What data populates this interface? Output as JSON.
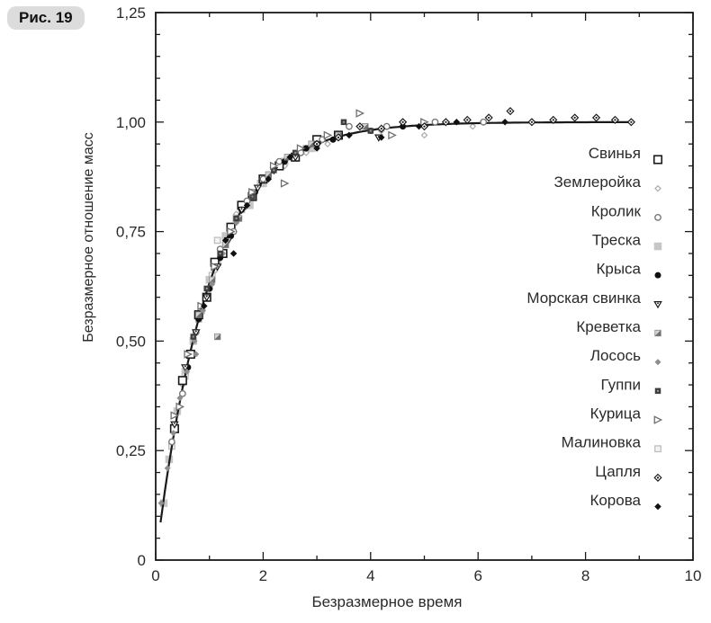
{
  "figure_label": "Рис. 19",
  "colors": {
    "ink": "#1a1a1a",
    "badge_bg": "#dcdcdc",
    "gray_light": "#c6c6c6",
    "gray_mid": "#8d8d8d",
    "gray_dark": "#3e3e3e"
  },
  "chart_data": {
    "type": "scatter",
    "title": "",
    "xlabel": "Безразмерное время",
    "ylabel": "Безразмерное отношение масс",
    "xlim": [
      0,
      10
    ],
    "ylim": [
      0,
      1.25
    ],
    "grid": false,
    "legend_position": "right-inside",
    "x_major_ticks": [
      {
        "v": 0,
        "label": "0"
      },
      {
        "v": 2,
        "label": "2"
      },
      {
        "v": 4,
        "label": "4"
      },
      {
        "v": 6,
        "label": "6"
      },
      {
        "v": 8,
        "label": "8"
      },
      {
        "v": 10,
        "label": "10"
      }
    ],
    "x_minor_ticks": [
      1,
      3,
      5,
      7,
      9
    ],
    "y_major_ticks": [
      {
        "v": 0,
        "label": "0"
      },
      {
        "v": 0.25,
        "label": "0,25"
      },
      {
        "v": 0.5,
        "label": "0,50"
      },
      {
        "v": 0.75,
        "label": "0,75"
      },
      {
        "v": 1.0,
        "label": "1,00"
      },
      {
        "v": 1.25,
        "label": "1,25"
      }
    ],
    "y_minor_step": 0.05,
    "fit_curve": {
      "type": "saturating-exponential",
      "description": "y = 1 - exp(-t)",
      "x_start": 0.09,
      "x_end": 8.85
    },
    "series": [
      {
        "id": "pig",
        "name": "Свинья",
        "marker": "square-open",
        "points": [
          [
            0.35,
            0.3
          ],
          [
            0.5,
            0.41
          ],
          [
            0.65,
            0.47
          ],
          [
            0.8,
            0.56
          ],
          [
            0.95,
            0.6
          ],
          [
            1.1,
            0.68
          ],
          [
            1.25,
            0.7
          ],
          [
            1.4,
            0.76
          ],
          [
            1.6,
            0.81
          ],
          [
            1.8,
            0.83
          ],
          [
            2.0,
            0.87
          ],
          [
            2.3,
            0.9
          ],
          [
            2.6,
            0.92
          ],
          [
            3.0,
            0.96
          ],
          [
            3.4,
            0.97
          ]
        ]
      },
      {
        "id": "shrew",
        "name": "Землеройка",
        "marker": "diamond-open-light",
        "points": [
          [
            0.5,
            0.4
          ],
          [
            0.7,
            0.5
          ],
          [
            0.9,
            0.58
          ],
          [
            1.1,
            0.66
          ],
          [
            1.3,
            0.73
          ],
          [
            1.5,
            0.79
          ],
          [
            1.8,
            0.83
          ],
          [
            2.1,
            0.88
          ],
          [
            2.4,
            0.9
          ],
          [
            2.8,
            0.93
          ],
          [
            3.2,
            0.95
          ],
          [
            3.6,
            0.97
          ],
          [
            4.2,
            0.98
          ],
          [
            5.0,
            0.97
          ],
          [
            5.9,
            0.99
          ]
        ]
      },
      {
        "id": "rabbit",
        "name": "Кролик",
        "marker": "circle-open",
        "points": [
          [
            0.3,
            0.27
          ],
          [
            0.5,
            0.38
          ],
          [
            0.75,
            0.52
          ],
          [
            1.0,
            0.62
          ],
          [
            1.2,
            0.71
          ],
          [
            1.45,
            0.75
          ],
          [
            1.7,
            0.82
          ],
          [
            2.0,
            0.87
          ],
          [
            2.3,
            0.91
          ],
          [
            2.7,
            0.93
          ],
          [
            3.1,
            0.96
          ],
          [
            3.6,
            0.99
          ],
          [
            4.3,
            0.99
          ],
          [
            5.2,
            1.0
          ],
          [
            6.1,
            1.0
          ]
        ]
      },
      {
        "id": "cod",
        "name": "Треска",
        "marker": "square-filled-light",
        "points": [
          [
            0.15,
            0.13
          ],
          [
            0.25,
            0.23
          ],
          [
            0.4,
            0.34
          ],
          [
            0.55,
            0.43
          ],
          [
            0.7,
            0.5
          ],
          [
            0.85,
            0.57
          ],
          [
            1.0,
            0.64
          ],
          [
            1.15,
            0.68
          ],
          [
            1.3,
            0.74
          ],
          [
            1.5,
            0.78
          ],
          [
            1.75,
            0.81
          ],
          [
            2.0,
            0.86
          ],
          [
            2.4,
            0.91
          ],
          [
            2.9,
            0.94
          ]
        ]
      },
      {
        "id": "rat",
        "name": "Крыса",
        "marker": "circle-filled",
        "points": [
          [
            0.6,
            0.44
          ],
          [
            0.8,
            0.55
          ],
          [
            1.0,
            0.62
          ],
          [
            1.2,
            0.69
          ],
          [
            1.4,
            0.74
          ],
          [
            1.6,
            0.8
          ],
          [
            1.85,
            0.84
          ],
          [
            2.1,
            0.88
          ],
          [
            2.4,
            0.91
          ],
          [
            2.8,
            0.94
          ],
          [
            3.3,
            0.96
          ],
          [
            4.0,
            0.98
          ],
          [
            4.6,
            0.99
          ]
        ]
      },
      {
        "id": "guinea-pig",
        "name": "Морская свинка",
        "marker": "triangle-down-open",
        "points": [
          [
            0.35,
            0.31
          ],
          [
            0.55,
            0.44
          ],
          [
            0.75,
            0.52
          ],
          [
            0.95,
            0.6
          ],
          [
            1.15,
            0.67
          ],
          [
            1.35,
            0.73
          ],
          [
            1.6,
            0.8
          ],
          [
            1.9,
            0.85
          ],
          [
            2.2,
            0.89
          ],
          [
            2.6,
            0.92
          ],
          [
            3.0,
            0.95
          ],
          [
            4.15,
            0.965
          ]
        ]
      },
      {
        "id": "shrimp",
        "name": "Креветка",
        "marker": "square-half",
        "points": [
          [
            0.8,
            0.56
          ],
          [
            1.05,
            0.64
          ],
          [
            1.15,
            0.51
          ],
          [
            1.3,
            0.72
          ],
          [
            1.55,
            0.78
          ],
          [
            1.8,
            0.84
          ],
          [
            2.1,
            0.88
          ],
          [
            2.45,
            0.92
          ],
          [
            2.9,
            0.95
          ],
          [
            3.4,
            0.97
          ],
          [
            3.9,
            0.99
          ]
        ]
      },
      {
        "id": "salmon",
        "name": "Лосось",
        "marker": "diamond-filled-gray",
        "points": [
          [
            0.1,
            0.13
          ],
          [
            0.22,
            0.21
          ],
          [
            0.33,
            0.29
          ],
          [
            0.45,
            0.37
          ],
          [
            0.58,
            0.43
          ],
          [
            0.72,
            0.5
          ],
          [
            0.75,
            0.47
          ],
          [
            0.88,
            0.57
          ],
          [
            1.05,
            0.63
          ],
          [
            1.25,
            0.7
          ],
          [
            1.5,
            0.77
          ]
        ]
      },
      {
        "id": "guppy",
        "name": "Гуппи",
        "marker": "square-filled-dark",
        "points": [
          [
            0.7,
            0.51
          ],
          [
            0.95,
            0.62
          ],
          [
            1.2,
            0.7
          ],
          [
            1.5,
            0.78
          ],
          [
            1.8,
            0.83
          ],
          [
            2.2,
            0.89
          ],
          [
            2.6,
            0.93
          ],
          [
            3.0,
            0.95
          ],
          [
            3.5,
            1.0
          ],
          [
            4.0,
            0.98
          ]
        ]
      },
      {
        "id": "chicken",
        "name": "Курица",
        "marker": "triangle-right-open",
        "points": [
          [
            0.35,
            0.33
          ],
          [
            0.45,
            0.35
          ],
          [
            0.6,
            0.47
          ],
          [
            0.85,
            0.58
          ],
          [
            1.1,
            0.67
          ],
          [
            1.4,
            0.75
          ],
          [
            1.8,
            0.84
          ],
          [
            2.2,
            0.9
          ],
          [
            2.4,
            0.86
          ],
          [
            2.7,
            0.94
          ],
          [
            3.2,
            0.97
          ],
          [
            3.8,
            1.02
          ],
          [
            4.4,
            0.97
          ],
          [
            5.0,
            1.0
          ]
        ]
      },
      {
        "id": "robin",
        "name": "Малиновка",
        "marker": "square-open-light",
        "points": [
          [
            0.3,
            0.26
          ],
          [
            0.55,
            0.42
          ],
          [
            0.8,
            0.55
          ],
          [
            1.05,
            0.65
          ],
          [
            1.15,
            0.73
          ],
          [
            1.3,
            0.72
          ],
          [
            1.6,
            0.8
          ],
          [
            1.95,
            0.86
          ],
          [
            2.3,
            0.9
          ],
          [
            2.8,
            0.94
          ]
        ]
      },
      {
        "id": "heron",
        "name": "Цапля",
        "marker": "diamond-dot",
        "points": [
          [
            3.0,
            0.95
          ],
          [
            3.4,
            0.965
          ],
          [
            3.8,
            0.99
          ],
          [
            4.2,
            0.985
          ],
          [
            4.6,
            1.0
          ],
          [
            5.0,
            0.99
          ],
          [
            5.4,
            1.0
          ],
          [
            5.8,
            1.005
          ],
          [
            6.2,
            1.01
          ],
          [
            6.6,
            1.025
          ],
          [
            7.0,
            1.0
          ],
          [
            7.4,
            1.005
          ],
          [
            7.8,
            1.01
          ],
          [
            8.2,
            1.01
          ],
          [
            8.55,
            1.005
          ],
          [
            8.85,
            1.0
          ]
        ]
      },
      {
        "id": "cow",
        "name": "Корова",
        "marker": "diamond-filled-black",
        "points": [
          [
            0.9,
            0.58
          ],
          [
            1.3,
            0.73
          ],
          [
            1.45,
            0.7
          ],
          [
            1.7,
            0.81
          ],
          [
            2.1,
            0.87
          ],
          [
            2.5,
            0.92
          ],
          [
            3.0,
            0.94
          ],
          [
            3.6,
            0.97
          ],
          [
            4.2,
            0.965
          ],
          [
            4.9,
            0.99
          ],
          [
            5.6,
            1.0
          ],
          [
            6.5,
            1.0
          ]
        ]
      }
    ]
  }
}
